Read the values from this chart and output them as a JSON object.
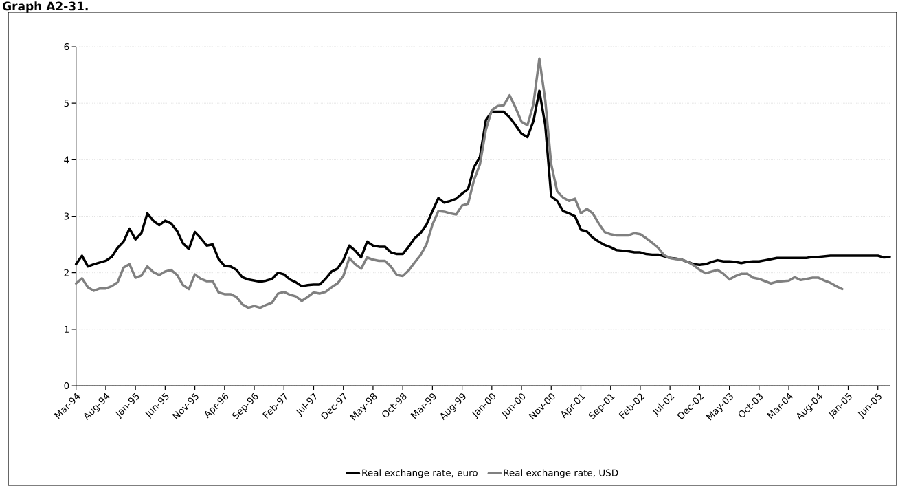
{
  "chart_data": {
    "type": "line",
    "title": "Graph A2-31.",
    "categories": [
      "Mar-94",
      null,
      null,
      null,
      null,
      "Aug-94",
      null,
      null,
      null,
      null,
      "Jan-95",
      null,
      null,
      null,
      null,
      "Jun-95",
      null,
      null,
      null,
      null,
      "Nov-95",
      null,
      null,
      null,
      null,
      "Apr-96",
      null,
      null,
      null,
      null,
      "Sep-96",
      null,
      null,
      null,
      null,
      "Feb-97",
      null,
      null,
      null,
      null,
      "Jul-97",
      null,
      null,
      null,
      null,
      "Dec-97",
      null,
      null,
      null,
      null,
      "May-98",
      null,
      null,
      null,
      null,
      "Oct-98",
      null,
      null,
      null,
      null,
      "Mar-99",
      null,
      null,
      null,
      null,
      "Aug-99",
      null,
      null,
      null,
      null,
      "Jan-00",
      null,
      null,
      null,
      null,
      "Jun-00",
      null,
      null,
      null,
      null,
      "Nov-00",
      null,
      null,
      null,
      null,
      "Apr-01",
      null,
      null,
      null,
      null,
      "Sep-01",
      null,
      null,
      null,
      null,
      "Feb-02",
      null,
      null,
      null,
      null,
      "Jul-02",
      null,
      null,
      null,
      null,
      "Dec-02",
      null,
      null,
      null,
      null,
      "May-03",
      null,
      null,
      null,
      null,
      "Oct-03",
      null,
      null,
      null,
      null,
      "Mar-04",
      null,
      null,
      null,
      null,
      "Aug-04",
      null,
      null,
      null,
      null,
      "Jan-05",
      null,
      null,
      null,
      null,
      "Jun-05",
      null,
      null
    ],
    "series": [
      {
        "name": "Real exchange rate, euro",
        "color": "#000000",
        "values": [
          2.15,
          2.3,
          2.11,
          2.15,
          2.18,
          2.21,
          2.28,
          2.44,
          2.55,
          2.78,
          2.59,
          2.7,
          3.05,
          2.92,
          2.84,
          2.92,
          2.87,
          2.74,
          2.52,
          2.42,
          2.72,
          2.61,
          2.48,
          2.5,
          2.24,
          2.12,
          2.11,
          2.05,
          1.92,
          1.88,
          1.86,
          1.84,
          1.86,
          1.89,
          2.0,
          1.97,
          1.88,
          1.83,
          1.76,
          1.78,
          1.79,
          1.79,
          1.89,
          2.02,
          2.07,
          2.22,
          2.48,
          2.39,
          2.27,
          2.55,
          2.48,
          2.46,
          2.46,
          2.36,
          2.33,
          2.33,
          2.46,
          2.61,
          2.7,
          2.85,
          3.09,
          3.32,
          3.24,
          3.27,
          3.31,
          3.4,
          3.48,
          3.87,
          4.05,
          4.7,
          4.85,
          4.85,
          4.85,
          4.75,
          4.61,
          4.46,
          4.4,
          4.68,
          5.22,
          4.61,
          3.35,
          3.27,
          3.09,
          3.05,
          3.0,
          2.76,
          2.73,
          2.62,
          2.55,
          2.49,
          2.45,
          2.4,
          2.39,
          2.38,
          2.36,
          2.36,
          2.33,
          2.32,
          2.32,
          2.29,
          2.26,
          2.25,
          2.23,
          2.19,
          2.15,
          2.14,
          2.15,
          2.19,
          2.22,
          2.2,
          2.2,
          2.19,
          2.17,
          2.19,
          2.2,
          2.2,
          2.22,
          2.24,
          2.26,
          2.26,
          2.26,
          2.26,
          2.26,
          2.26,
          2.28,
          2.28,
          2.29,
          2.3,
          2.3,
          2.3,
          2.3,
          2.3,
          2.3,
          2.3,
          2.3,
          2.3,
          2.27,
          2.28
        ]
      },
      {
        "name": "Real exchange rate, USD",
        "color": "#808080",
        "values": [
          1.81,
          1.9,
          1.74,
          1.68,
          1.72,
          1.72,
          1.76,
          1.83,
          2.09,
          2.15,
          1.91,
          1.95,
          2.11,
          2.01,
          1.96,
          2.02,
          2.05,
          1.96,
          1.78,
          1.71,
          1.97,
          1.89,
          1.85,
          1.85,
          1.65,
          1.62,
          1.62,
          1.57,
          1.44,
          1.38,
          1.41,
          1.38,
          1.43,
          1.47,
          1.63,
          1.66,
          1.61,
          1.58,
          1.5,
          1.57,
          1.65,
          1.63,
          1.66,
          1.74,
          1.81,
          1.94,
          2.26,
          2.15,
          2.07,
          2.27,
          2.23,
          2.21,
          2.21,
          2.11,
          1.96,
          1.94,
          2.04,
          2.18,
          2.31,
          2.5,
          2.85,
          3.09,
          3.08,
          3.05,
          3.03,
          3.19,
          3.22,
          3.64,
          3.92,
          4.53,
          4.88,
          4.95,
          4.96,
          5.14,
          4.92,
          4.67,
          4.61,
          4.98,
          5.79,
          5.05,
          3.92,
          3.44,
          3.33,
          3.27,
          3.31,
          3.05,
          3.13,
          3.05,
          2.87,
          2.72,
          2.68,
          2.66,
          2.66,
          2.66,
          2.7,
          2.68,
          2.61,
          2.53,
          2.44,
          2.31,
          2.26,
          2.24,
          2.23,
          2.19,
          2.13,
          2.05,
          1.99,
          2.02,
          2.05,
          1.98,
          1.88,
          1.94,
          1.98,
          1.98,
          1.91,
          1.89,
          1.85,
          1.81,
          1.84,
          1.85,
          1.86,
          1.92,
          1.87,
          1.89,
          1.91,
          1.91,
          1.86,
          1.82,
          1.76,
          1.71,
          null,
          null,
          null,
          null,
          null,
          null,
          null,
          null
        ]
      }
    ],
    "ylim": [
      0,
      6
    ],
    "yticks": [
      0,
      1,
      2,
      3,
      4,
      5,
      6
    ],
    "grid": "y",
    "legend": "bottom"
  }
}
